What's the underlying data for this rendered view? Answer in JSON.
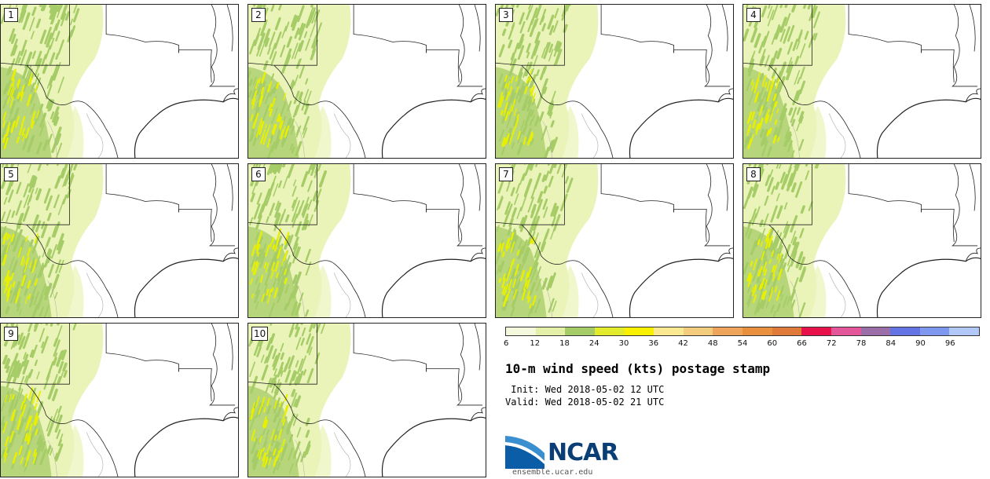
{
  "title": "10-m wind speed (kts) postage stamp",
  "init_line": " Init: Wed 2018-05-02 12 UTC",
  "valid_line": "Valid: Wed 2018-05-02 21 UTC",
  "logo_text": "NCAR",
  "website": "ensemble.ucar.edu",
  "members": [
    "1",
    "2",
    "3",
    "4",
    "5",
    "6",
    "7",
    "8",
    "9",
    "10"
  ],
  "colorbar": {
    "ticks": [
      "6",
      "12",
      "18",
      "24",
      "30",
      "36",
      "42",
      "48",
      "54",
      "60",
      "66",
      "72",
      "78",
      "84",
      "90",
      "96"
    ],
    "colors": [
      "#f4f8dc",
      "#e4f0a8",
      "#a6cc68",
      "#e2ec2c",
      "#faf000",
      "#fbe992",
      "#f4cc7e",
      "#eea45a",
      "#e8903e",
      "#e07a3a",
      "#e8124a",
      "#e4569a",
      "#9c6ea8",
      "#6474e4",
      "#7e98f0",
      "#b2c8f8"
    ]
  },
  "map_colors": {
    "light": "#eaf4b8",
    "mid": "#a6cc68",
    "high": "#e8f000",
    "border": "#222222",
    "county": "#aaaaaa"
  }
}
